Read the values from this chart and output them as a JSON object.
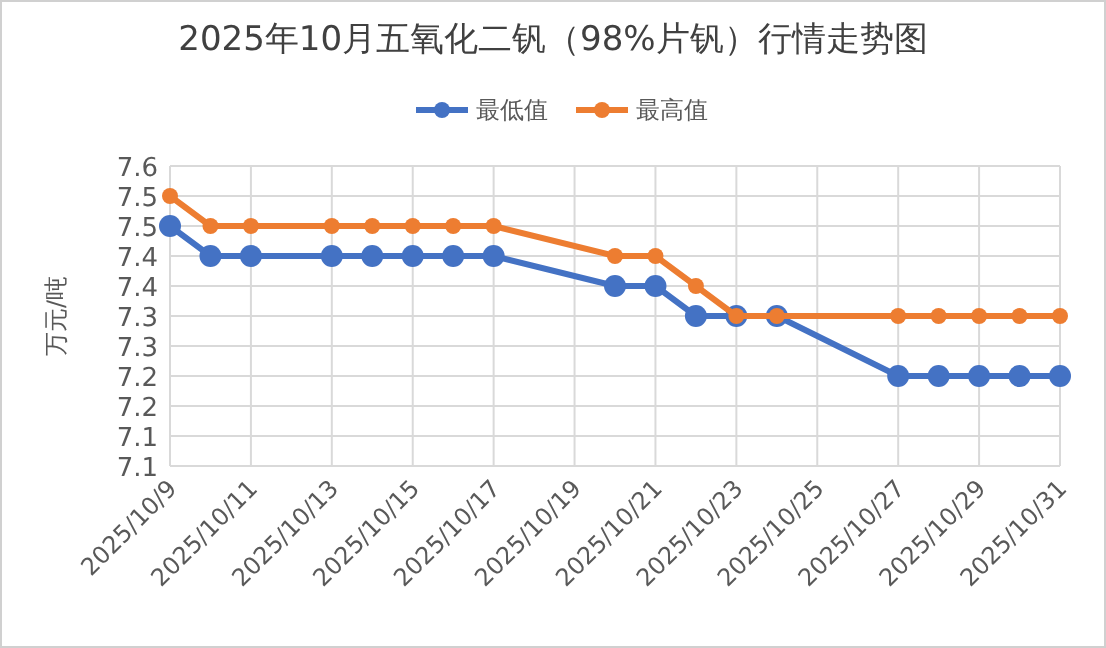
{
  "chart_data": {
    "type": "line",
    "title": "2025年10月五氧化二钒（98%片钒）行情走势图",
    "ylabel": "万元/吨",
    "x": [
      "2025-10-09",
      "2025-10-10",
      "2025-10-11",
      "2025-10-13",
      "2025-10-14",
      "2025-10-15",
      "2025-10-16",
      "2025-10-17",
      "2025-10-20",
      "2025-10-21",
      "2025-10-22",
      "2025-10-23",
      "2025-10-24",
      "2025-10-27",
      "2025-10-28",
      "2025-10-29",
      "2025-10-30",
      "2025-10-31"
    ],
    "series": [
      {
        "name": "最低值",
        "color": "#4472c4",
        "values": [
          7.45,
          7.4,
          7.4,
          7.4,
          7.4,
          7.4,
          7.4,
          7.4,
          7.35,
          7.35,
          7.3,
          7.3,
          7.3,
          7.2,
          7.2,
          7.2,
          7.2,
          7.2
        ]
      },
      {
        "name": "最高值",
        "color": "#ed7d31",
        "values": [
          7.5,
          7.45,
          7.45,
          7.45,
          7.45,
          7.45,
          7.45,
          7.45,
          7.4,
          7.4,
          7.35,
          7.3,
          7.3,
          7.3,
          7.3,
          7.3,
          7.3,
          7.3
        ]
      }
    ],
    "xlim": [
      "2025-10-09",
      "2025-10-31"
    ],
    "xticks": [
      {
        "value": "2025-10-09",
        "label": "2025/10/9"
      },
      {
        "value": "2025-10-11",
        "label": "2025/10/11"
      },
      {
        "value": "2025-10-13",
        "label": "2025/10/13"
      },
      {
        "value": "2025-10-15",
        "label": "2025/10/15"
      },
      {
        "value": "2025-10-17",
        "label": "2025/10/17"
      },
      {
        "value": "2025-10-19",
        "label": "2025/10/19"
      },
      {
        "value": "2025-10-21",
        "label": "2025/10/21"
      },
      {
        "value": "2025-10-23",
        "label": "2025/10/23"
      },
      {
        "value": "2025-10-25",
        "label": "2025/10/25"
      },
      {
        "value": "2025-10-27",
        "label": "2025/10/27"
      },
      {
        "value": "2025-10-29",
        "label": "2025/10/29"
      },
      {
        "value": "2025-10-31",
        "label": "2025/10/31"
      }
    ],
    "ylim": [
      7.05,
      7.55
    ],
    "yticks": [
      {
        "value": 7.05,
        "label": "7.1"
      },
      {
        "value": 7.1,
        "label": "7.1"
      },
      {
        "value": 7.15,
        "label": "7.2"
      },
      {
        "value": 7.2,
        "label": "7.2"
      },
      {
        "value": 7.25,
        "label": "7.3"
      },
      {
        "value": 7.3,
        "label": "7.3"
      },
      {
        "value": 7.35,
        "label": "7.4"
      },
      {
        "value": 7.4,
        "label": "7.4"
      },
      {
        "value": 7.45,
        "label": "7.5"
      },
      {
        "value": 7.5,
        "label": "7.5"
      },
      {
        "value": 7.55,
        "label": "7.6"
      }
    ],
    "grid": true,
    "legend": "top",
    "marker": "circle",
    "line_style": "solid"
  }
}
